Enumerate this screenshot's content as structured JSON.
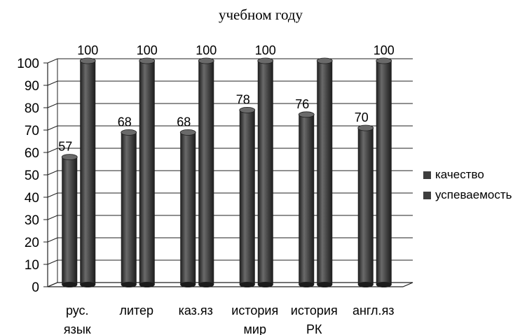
{
  "chart_data": {
    "type": "bar",
    "title": "учебном году",
    "categories": [
      [
        "рус.",
        "язык"
      ],
      [
        "литер"
      ],
      [
        "каз.яз"
      ],
      [
        "история",
        "мир"
      ],
      [
        "история",
        "РК"
      ],
      [
        "англ.яз"
      ]
    ],
    "series": [
      {
        "name": "качество",
        "values": [
          57,
          68,
          68,
          78,
          76,
          70
        ],
        "data_labels": [
          "57",
          "68",
          "68",
          "78",
          "76",
          "70"
        ]
      },
      {
        "name": "успеваемость",
        "values": [
          100,
          100,
          100,
          100,
          100,
          100
        ],
        "data_labels": [
          "100",
          "100",
          "100",
          "100",
          "",
          "100"
        ]
      }
    ],
    "ylim": [
      0,
      100
    ],
    "yticks": [
      0,
      10,
      20,
      30,
      40,
      50,
      60,
      70,
      80,
      90,
      100
    ],
    "grid": true,
    "legend": "right",
    "style": "3d-cylinder",
    "colors": {
      "bar": "#3e3e3e",
      "bar_highlight": "#6a6a6a",
      "bar_shadow": "#1c1c1c",
      "grid": "#222222"
    }
  }
}
